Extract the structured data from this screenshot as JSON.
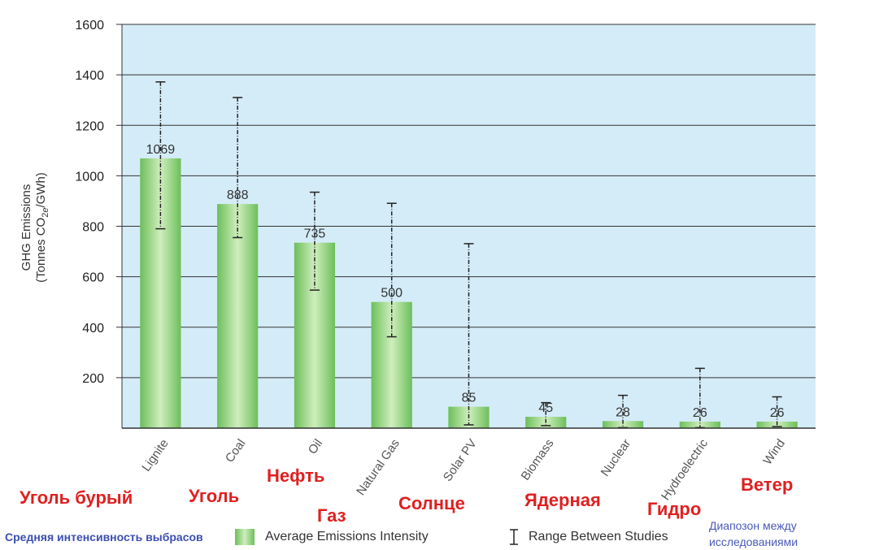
{
  "chart_data": {
    "type": "bar",
    "categories": [
      "Lignite",
      "Coal",
      "Oil",
      "Natural Gas",
      "Solar PV",
      "Biomass",
      "Nuclear",
      "Hydroelectric",
      "Wind"
    ],
    "values": [
      1069,
      888,
      735,
      500,
      85,
      45,
      28,
      26,
      26
    ],
    "value_labels": [
      "1069",
      "888",
      "735",
      "500",
      "85",
      "45",
      "28",
      "26",
      "26"
    ],
    "range_low": [
      790,
      755,
      547,
      362,
      13,
      10,
      2,
      2,
      6
    ],
    "range_high": [
      1372,
      1310,
      935,
      891,
      731,
      101,
      130,
      237,
      124
    ],
    "ylim": [
      0,
      1600
    ],
    "yticks": [
      200,
      400,
      600,
      800,
      1000,
      1200,
      1400,
      1600
    ],
    "ytick_labels": [
      "200",
      "400",
      "600",
      "800",
      "1000",
      "1200",
      "1400",
      "1600"
    ],
    "ylabel_line1": "GHG Emissions",
    "ylabel_line2": "(Tonnes CO",
    "ylabel_sub": "2",
    "ylabel_sub2": "e",
    "ylabel_end": "/GWh)",
    "xlabel": "",
    "title": "",
    "grid": true,
    "legend": {
      "bar_label": "Average Emissions Intensity",
      "range_label": "Range Between Studies",
      "placement": "bottom"
    },
    "colors": {
      "plot_bg": "#d4ecf8",
      "bar_edge": "#6cbf5a",
      "bar_center": "#cfeebd",
      "error_bar": "#222222",
      "annotation_red": "#e02020",
      "annotation_blue": "#3b4fb0"
    }
  },
  "annotations_ru": {
    "lignite": "Уголь бурый",
    "coal": "Уголь",
    "oil": "Нефть",
    "gas": "Газ",
    "solar": "Солнце",
    "nuclear": "Ядерная",
    "hydro": "Гидро",
    "wind": "Ветер",
    "legend_bar": "Средняя интенсивность выбрасов",
    "legend_range": "Диапозон между исследованиями"
  }
}
